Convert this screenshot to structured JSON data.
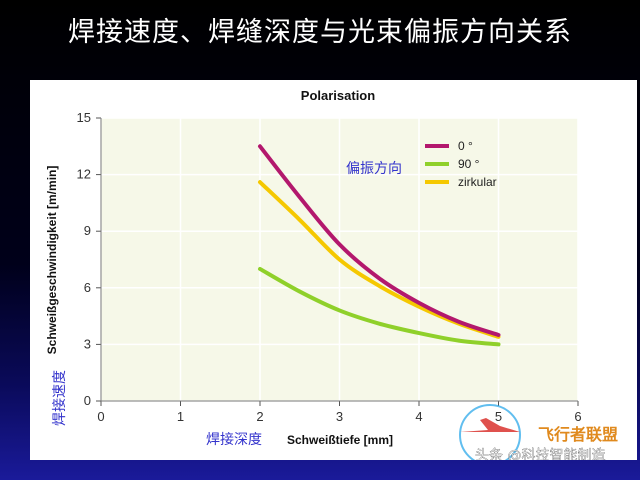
{
  "slide": {
    "title": "焊接速度、焊缝深度与光束偏振方向关系"
  },
  "watermark": {
    "brand_text": "飞行者联盟",
    "credit_text": "头条 @科技智能制造"
  },
  "annotations": {
    "legend_heading_cn": "偏振方向",
    "y_axis_cn": "焊接速度",
    "x_axis_cn": "焊接深度"
  },
  "colors": {
    "series_0": "#b3186d",
    "series_90": "#8fd02a",
    "series_zirkular": "#f5c800",
    "plot_bg": "#f6f8e8",
    "grid": "#ffffff"
  },
  "chart_data": {
    "type": "line",
    "title": "Polarisation",
    "xlabel": "Schweißtiefe [mm]",
    "ylabel": "Schweißgeschwindigkeit [m/min]",
    "xlim": [
      0,
      6
    ],
    "ylim": [
      0,
      15
    ],
    "xticks": [
      "0",
      "1",
      "2",
      "3",
      "4",
      "5",
      "6"
    ],
    "yticks": [
      "0",
      "3",
      "6",
      "9",
      "12",
      "15"
    ],
    "grid": true,
    "legend_position": "top-right",
    "series": [
      {
        "name": "0 °",
        "x": [
          2.0,
          2.5,
          3.0,
          3.5,
          4.0,
          4.5,
          5.0
        ],
        "y": [
          13.5,
          10.8,
          8.3,
          6.5,
          5.2,
          4.2,
          3.5
        ]
      },
      {
        "name": "90 °",
        "x": [
          2.0,
          2.5,
          3.0,
          3.5,
          4.0,
          4.5,
          5.0
        ],
        "y": [
          7.0,
          5.8,
          4.8,
          4.1,
          3.6,
          3.2,
          3.0
        ]
      },
      {
        "name": "zirkular",
        "x": [
          2.0,
          2.5,
          3.0,
          3.5,
          4.0,
          4.5,
          5.0
        ],
        "y": [
          11.6,
          9.6,
          7.5,
          6.1,
          5.0,
          4.1,
          3.4
        ]
      }
    ]
  }
}
